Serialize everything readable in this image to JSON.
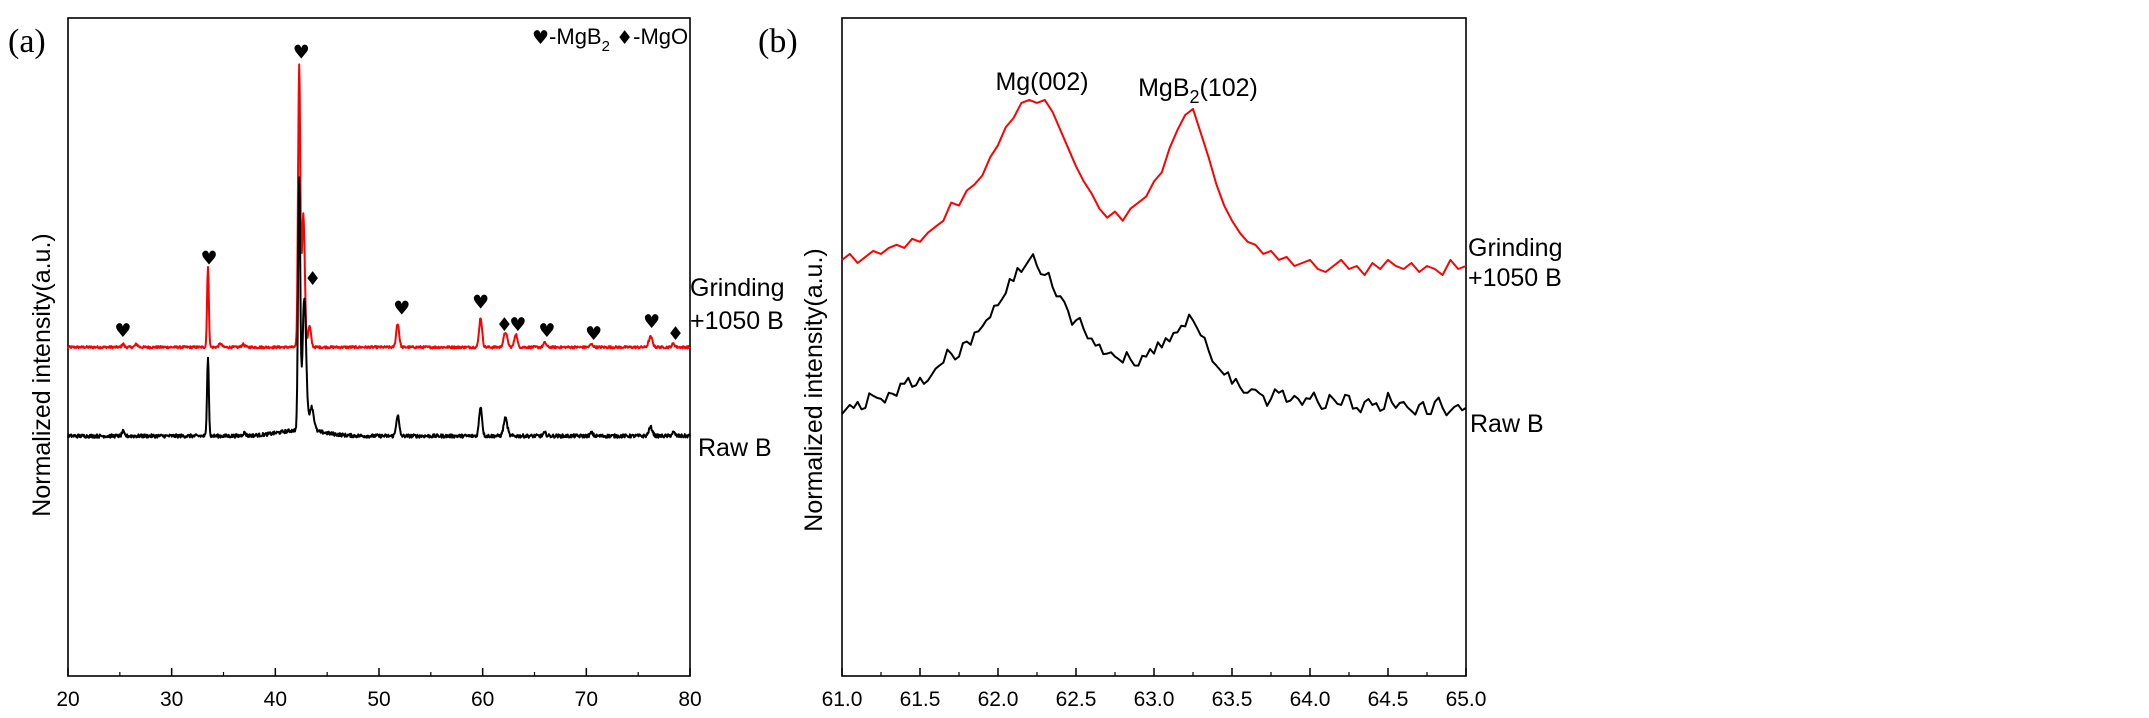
{
  "chart_data": [
    {
      "panel": "(a)",
      "type": "line",
      "xlabel": "",
      "ylabel": "Normalized intensity(a.u.)",
      "xlim": [
        20,
        80
      ],
      "x_ticks": [
        "20",
        "30",
        "40",
        "50",
        "60",
        "70",
        "80"
      ],
      "legend": {
        "mgb2_label": "-MgB",
        "mgb2_sub": "2",
        "mgo_label": "-MgO",
        "mgb2_icon": "heart-icon",
        "mgo_icon": "diamond-icon"
      },
      "series": [
        {
          "name": "Grinding +1050 B",
          "label_line1": "Grinding",
          "label_line2": "+1050 B",
          "color": "#ff0000",
          "baseline": 0.3,
          "noise": 0.004,
          "peaks": [
            [
              25.3,
              0.012,
              0.15
            ],
            [
              26.6,
              0.01,
              0.2
            ],
            [
              33.5,
              0.27,
              0.12
            ],
            [
              34.7,
              0.012,
              0.2
            ],
            [
              36.9,
              0.01,
              0.2
            ],
            [
              42.3,
              0.95,
              0.15
            ],
            [
              42.7,
              0.45,
              0.2
            ],
            [
              43.3,
              0.07,
              0.2
            ],
            [
              51.8,
              0.08,
              0.2
            ],
            [
              59.8,
              0.1,
              0.2
            ],
            [
              62.2,
              0.05,
              0.25
            ],
            [
              63.2,
              0.045,
              0.2
            ],
            [
              66.0,
              0.015,
              0.2
            ],
            [
              70.5,
              0.01,
              0.2
            ],
            [
              76.2,
              0.035,
              0.25
            ],
            [
              78.4,
              0.012,
              0.2
            ]
          ]
        },
        {
          "name": "Raw B",
          "label_line1": "Raw B",
          "label_line2": "",
          "color": "#000000",
          "baseline": 0.0,
          "noise": 0.006,
          "peaks": [
            [
              25.3,
              0.015,
              0.15
            ],
            [
              33.5,
              0.27,
              0.12
            ],
            [
              37.0,
              0.01,
              0.2
            ],
            [
              42.3,
              0.85,
              0.15
            ],
            [
              42.8,
              0.45,
              0.25
            ],
            [
              43.5,
              0.08,
              0.3
            ],
            [
              51.8,
              0.07,
              0.2
            ],
            [
              59.8,
              0.1,
              0.2
            ],
            [
              62.2,
              0.06,
              0.25
            ],
            [
              66.0,
              0.01,
              0.2
            ],
            [
              70.5,
              0.01,
              0.2
            ],
            [
              76.2,
              0.03,
              0.25
            ],
            [
              78.4,
              0.012,
              0.2
            ]
          ]
        }
      ],
      "annotations": [
        {
          "x": 25.3,
          "y": 0.335,
          "icon": "heart-icon"
        },
        {
          "x": 33.6,
          "y": 0.58,
          "icon": "heart-icon"
        },
        {
          "x": 42.5,
          "y": 1.275,
          "icon": "heart-icon"
        },
        {
          "x": 43.6,
          "y": 0.51,
          "icon": "diamond-icon"
        },
        {
          "x": 52.2,
          "y": 0.41,
          "icon": "heart-icon"
        },
        {
          "x": 59.8,
          "y": 0.43,
          "icon": "heart-icon"
        },
        {
          "x": 62.1,
          "y": 0.355,
          "icon": "diamond-icon"
        },
        {
          "x": 63.4,
          "y": 0.355,
          "icon": "heart-icon"
        },
        {
          "x": 66.2,
          "y": 0.335,
          "icon": "heart-icon"
        },
        {
          "x": 70.7,
          "y": 0.325,
          "icon": "heart-icon"
        },
        {
          "x": 76.3,
          "y": 0.365,
          "icon": "heart-icon"
        },
        {
          "x": 78.6,
          "y": 0.325,
          "icon": "diamond-icon"
        }
      ]
    },
    {
      "panel": "(b)",
      "type": "line",
      "xlabel": "",
      "ylabel": "Normalized intensity(a.u.)",
      "xlim": [
        61.0,
        65.0
      ],
      "x_ticks": [
        "61.0",
        "61.5",
        "62.0",
        "62.5",
        "63.0",
        "63.5",
        "64.0",
        "64.5",
        "65.0"
      ],
      "annotations": [
        {
          "text": "Mg(002)",
          "sub": "",
          "suffix": "",
          "x": 62.3
        },
        {
          "text": "MgB",
          "sub": "2",
          "suffix": "(102)",
          "x": 63.2
        }
      ],
      "series": [
        {
          "name": "Grinding +1050 B",
          "label_line1": "Grinding",
          "label_line2": "+1050 B",
          "color": "#ff0000",
          "x": [
            61.0,
            61.05,
            61.1,
            61.15,
            61.2,
            61.25,
            61.3,
            61.35,
            61.4,
            61.45,
            61.5,
            61.55,
            61.6,
            61.65,
            61.7,
            61.75,
            61.8,
            61.85,
            61.9,
            61.95,
            62.0,
            62.05,
            62.1,
            62.15,
            62.2,
            62.25,
            62.3,
            62.35,
            62.4,
            62.45,
            62.5,
            62.55,
            62.6,
            62.65,
            62.7,
            62.75,
            62.8,
            62.85,
            62.9,
            62.95,
            63.0,
            63.05,
            63.1,
            63.15,
            63.2,
            63.25,
            63.3,
            63.35,
            63.4,
            63.45,
            63.5,
            63.55,
            63.6,
            63.65,
            63.7,
            63.75,
            63.8,
            63.85,
            63.9,
            63.95,
            64.0,
            64.05,
            64.1,
            64.15,
            64.2,
            64.25,
            64.3,
            64.35,
            64.4,
            64.45,
            64.5,
            64.55,
            64.6,
            64.65,
            64.7,
            64.75,
            64.8,
            64.85,
            64.9,
            64.95,
            65.0
          ],
          "y": [
            0.53,
            0.55,
            0.52,
            0.54,
            0.56,
            0.55,
            0.57,
            0.58,
            0.57,
            0.6,
            0.59,
            0.62,
            0.64,
            0.66,
            0.72,
            0.71,
            0.76,
            0.78,
            0.81,
            0.87,
            0.91,
            0.97,
            1.0,
            1.05,
            1.06,
            1.05,
            1.06,
            1.02,
            0.96,
            0.9,
            0.84,
            0.79,
            0.75,
            0.7,
            0.67,
            0.69,
            0.66,
            0.7,
            0.72,
            0.74,
            0.79,
            0.82,
            0.9,
            0.96,
            1.01,
            1.03,
            0.95,
            0.87,
            0.78,
            0.71,
            0.66,
            0.62,
            0.59,
            0.58,
            0.55,
            0.56,
            0.53,
            0.54,
            0.51,
            0.52,
            0.53,
            0.5,
            0.49,
            0.51,
            0.53,
            0.5,
            0.51,
            0.48,
            0.52,
            0.5,
            0.53,
            0.51,
            0.5,
            0.52,
            0.49,
            0.51,
            0.5,
            0.48,
            0.53,
            0.5,
            0.51
          ]
        },
        {
          "name": "Raw B",
          "label_line1": "Raw B",
          "label_line2": "",
          "color": "#000000",
          "x": [
            61.0,
            61.05,
            61.1,
            61.15,
            61.2,
            61.25,
            61.3,
            61.35,
            61.4,
            61.45,
            61.5,
            61.55,
            61.6,
            61.65,
            61.7,
            61.75,
            61.8,
            61.85,
            61.9,
            61.95,
            62.0,
            62.05,
            62.1,
            62.15,
            62.2,
            62.25,
            62.3,
            62.35,
            62.4,
            62.45,
            62.5,
            62.55,
            62.6,
            62.65,
            62.7,
            62.75,
            62.8,
            62.85,
            62.9,
            62.95,
            63.0,
            63.05,
            63.1,
            63.15,
            63.2,
            63.25,
            63.3,
            63.35,
            63.4,
            63.45,
            63.5,
            63.55,
            63.6,
            63.65,
            63.7,
            63.75,
            63.8,
            63.85,
            63.9,
            63.95,
            64.0,
            64.05,
            64.1,
            64.15,
            64.2,
            64.25,
            64.3,
            64.35,
            64.4,
            64.45,
            64.5,
            64.55,
            64.6,
            64.65,
            64.7,
            64.75,
            64.8,
            64.85,
            64.9,
            64.95,
            65.0
          ],
          "y": [
            0.02,
            0.05,
            0.06,
            0.04,
            0.08,
            0.07,
            0.09,
            0.08,
            0.12,
            0.11,
            0.14,
            0.13,
            0.17,
            0.19,
            0.22,
            0.21,
            0.26,
            0.29,
            0.31,
            0.34,
            0.38,
            0.42,
            0.46,
            0.49,
            0.53,
            0.51,
            0.48,
            0.44,
            0.41,
            0.36,
            0.33,
            0.3,
            0.27,
            0.25,
            0.22,
            0.21,
            0.19,
            0.2,
            0.18,
            0.21,
            0.22,
            0.24,
            0.26,
            0.29,
            0.31,
            0.33,
            0.28,
            0.23,
            0.18,
            0.15,
            0.12,
            0.11,
            0.09,
            0.1,
            0.08,
            0.07,
            0.09,
            0.06,
            0.08,
            0.05,
            0.07,
            0.06,
            0.04,
            0.07,
            0.05,
            0.08,
            0.04,
            0.06,
            0.05,
            0.03,
            0.09,
            0.04,
            0.06,
            0.03,
            0.05,
            0.02,
            0.06,
            0.04,
            0.03,
            0.05,
            0.04
          ]
        }
      ]
    }
  ]
}
